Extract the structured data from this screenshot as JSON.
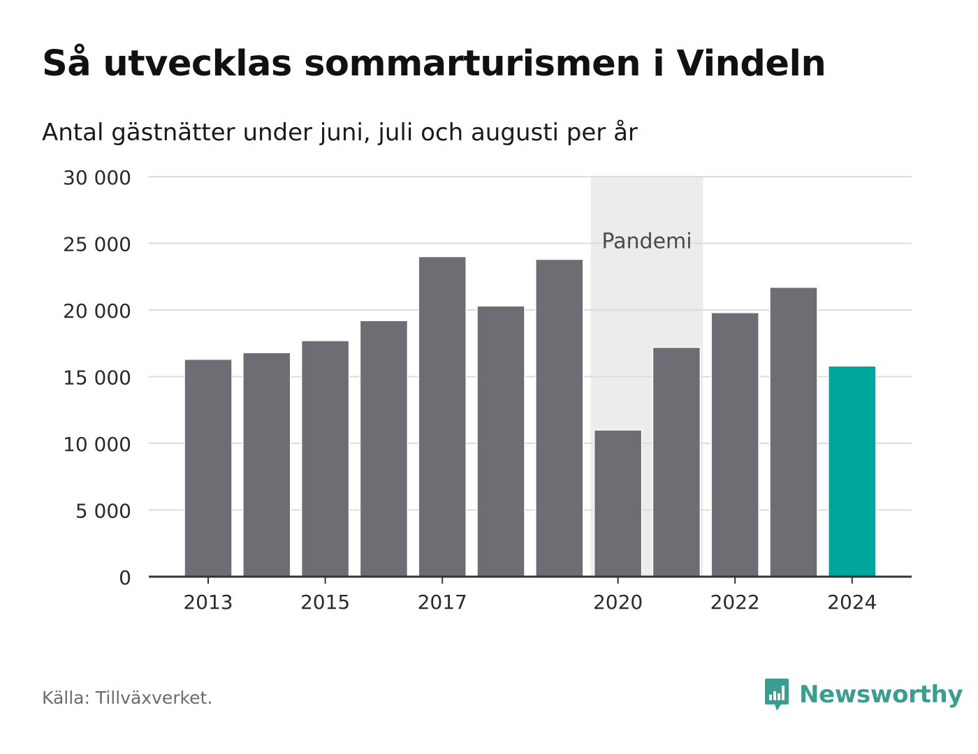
{
  "title": "Så utvecklas sommarturismen i Vindeln",
  "subtitle": "Antal gästnätter under juni, juli och augusti per år",
  "source": "Källa: Tillväxverket.",
  "brand": {
    "name": "Newsworthy",
    "icon": "newsworthy-logo-icon",
    "color": "#3b9d8f"
  },
  "colors": {
    "bar": "#6e6d74",
    "highlight": "#00a69c",
    "band": "#ececec",
    "grid": "#dcdcdc",
    "axis": "#333333"
  },
  "chart_data": {
    "type": "bar",
    "categories": [
      2013,
      2014,
      2015,
      2016,
      2017,
      2018,
      2019,
      2020,
      2021,
      2022,
      2023,
      2024
    ],
    "values": [
      16300,
      16800,
      17700,
      19200,
      24000,
      20300,
      23800,
      11000,
      17200,
      19800,
      21700,
      15800
    ],
    "highlight_category": 2024,
    "x_tick_labels": [
      "2013",
      "2015",
      "2017",
      "2020",
      "2022",
      "2024"
    ],
    "y_ticks": [
      0,
      5000,
      10000,
      15000,
      20000,
      25000,
      30000
    ],
    "y_tick_labels": [
      "0",
      "5 000",
      "10 000",
      "15 000",
      "20 000",
      "25 000",
      "30 000"
    ],
    "ylim": [
      0,
      30000
    ],
    "grid": true,
    "shaded_band": {
      "from": 2020,
      "to": 2021,
      "label": "Pandemi"
    }
  }
}
